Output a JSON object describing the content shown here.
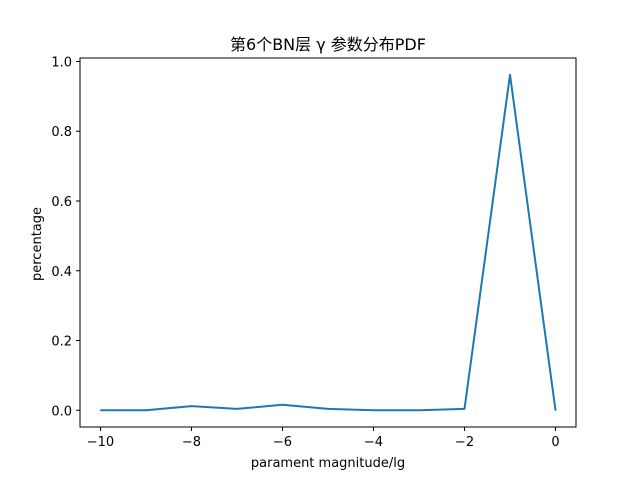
{
  "chart_data": {
    "type": "line",
    "title": "第6个BN层 γ 参数分布PDF",
    "xlabel": "parament magnitude/lg",
    "ylabel": "percentage",
    "xlim": [
      -10.45,
      0.45
    ],
    "ylim": [
      -0.048,
      1.01
    ],
    "xticks": [
      -10,
      -8,
      -6,
      -4,
      -2,
      0
    ],
    "xtick_labels": [
      "−10",
      "−8",
      "−6",
      "−4",
      "−2",
      "0"
    ],
    "yticks": [
      0.0,
      0.2,
      0.4,
      0.6,
      0.8,
      1.0
    ],
    "ytick_labels": [
      "0.0",
      "0.2",
      "0.4",
      "0.6",
      "0.8",
      "1.0"
    ],
    "grid": false,
    "series": [
      {
        "color": "#1f77b4",
        "x": [
          -10,
          -9,
          -8,
          -7,
          -6,
          -5,
          -4,
          -3,
          -2,
          -1,
          0
        ],
        "y": [
          0.0,
          0.0,
          0.012,
          0.004,
          0.016,
          0.004,
          0.0,
          0.0,
          0.004,
          0.962,
          0.0
        ]
      }
    ]
  }
}
